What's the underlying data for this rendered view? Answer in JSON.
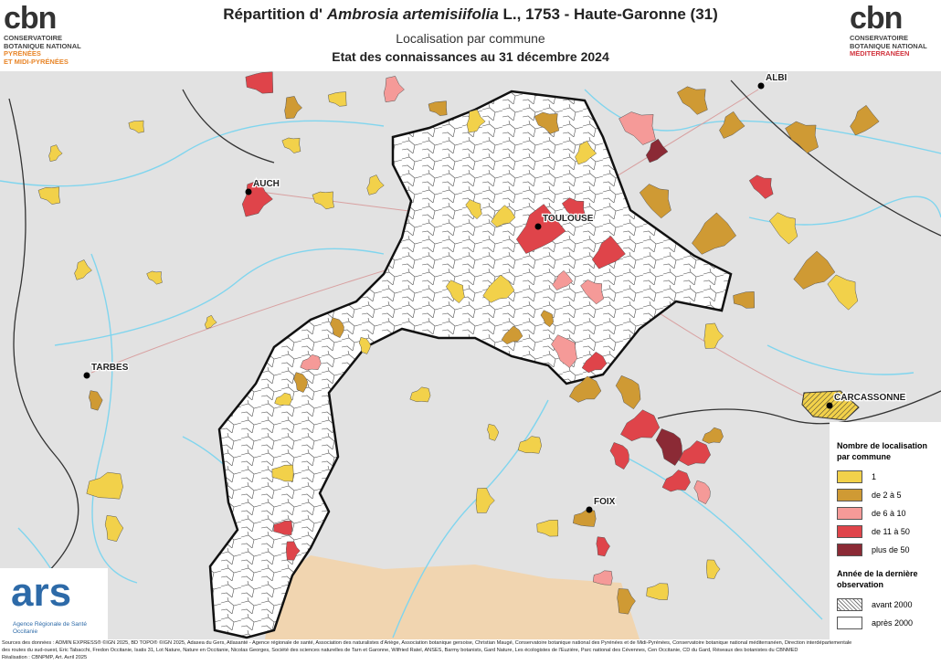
{
  "header": {
    "title_start": "Répartition d' ",
    "title_species": "Ambrosia artemisiifolia",
    "title_end": " L., 1753 - Haute-Garonne (31)",
    "subtitle": "Localisation par commune",
    "date": "Etat des connaissances au 31 décembre 2024"
  },
  "logo_left": {
    "mark": "cbn",
    "lines": [
      "CONSERVATOIRE",
      "BOTANIQUE NATIONAL",
      "PYRÉNÉES",
      "ET MIDI-PYRÉNÉES"
    ]
  },
  "logo_right": {
    "mark": "cbn",
    "lines": [
      "CONSERVATOIRE",
      "BOTANIQUE NATIONAL",
      "MÉDITERRANÉEN"
    ]
  },
  "map": {
    "cities": [
      "ALBI",
      "AUCH",
      "TOULOUSE",
      "TARBES",
      "CARCASSONNE",
      "FOIX"
    ]
  },
  "legend": {
    "title": "Nombre de localisation par commune",
    "classes": [
      {
        "label": "1",
        "color": "#f2d14a"
      },
      {
        "label": "de 2 à 5",
        "color": "#cf9a34"
      },
      {
        "label": "de 6 à 10",
        "color": "#f59a98"
      },
      {
        "label": "de 11 à 50",
        "color": "#df444a"
      },
      {
        "label": "plus de 50",
        "color": "#8b2a35"
      }
    ],
    "year_title": "Année de la dernière observation",
    "years": [
      {
        "label": "avant 2000",
        "pattern": "hatched"
      },
      {
        "label": "après 2000",
        "pattern": "plain"
      }
    ]
  },
  "ars": {
    "mark": "ars",
    "lines": [
      "Agence Régionale de Santé",
      "Occitanie"
    ]
  },
  "sources": [
    "Sources des données : ADMIN EXPRESS® ©IGN 2025, BD TOPO® ©IGN 2025, Adasea du Gers, Atlasanté - Agence régionale de santé, Association des naturalistes d'Ariège, Association botanique gersoise, Christian Maugé, Conservatoire botanique national des Pyrénées et de Midi-Pyrénées, Conservatoire botanique national méditerranéen, Direction interdépartementale",
    "des routes du sud-ouest, Eric Tabacchi, Fredon Occitanie, Isatis 31, Lot Nature, Nature en Occitanie, Nicolas Georges, Société des sciences naturelles de Tarn et Garonne, Wilfried Ratel, ANSES, Barmy botanists, Gard Nature, Les écologistes de l'Euzière, Parc national des Cévennes, Cen Occitanie, CD du Gard, Réseaux des botanistes du CBNMED",
    "Réalisation : CBNPMP, Art. Avril 2025"
  ]
}
